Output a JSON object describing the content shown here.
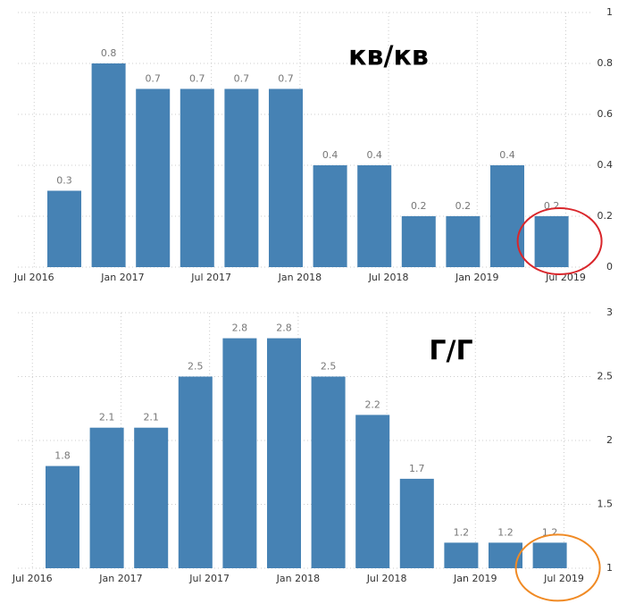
{
  "chart_data": [
    {
      "type": "bar",
      "annotation": "кв/кв",
      "color": "#4682b4",
      "x_labels": [
        "Jul 2016",
        "Jan 2017",
        "Jul 2017",
        "Jan 2018",
        "Jul 2018",
        "Jan 2019",
        "Jul 2019"
      ],
      "values": [
        0.3,
        0.8,
        0.7,
        0.7,
        0.7,
        0.7,
        0.4,
        0.4,
        0.2,
        0.2,
        0.4,
        0.2
      ],
      "ylim": [
        0,
        1
      ],
      "yticks": [
        0,
        0.2,
        0.4,
        0.6,
        0.8,
        1
      ],
      "grid": true,
      "highlight_color": "#d9262b"
    },
    {
      "type": "bar",
      "annotation": "Г/Г",
      "color": "#4682b4",
      "x_labels": [
        "Jul 2016",
        "Jan 2017",
        "Jul 2017",
        "Jan 2018",
        "Jul 2018",
        "Jan 2019",
        "Jul 2019"
      ],
      "values": [
        1.8,
        2.1,
        2.1,
        2.5,
        2.8,
        2.8,
        2.5,
        2.2,
        1.7,
        1.2,
        1.2,
        1.2
      ],
      "ylim": [
        1,
        3
      ],
      "yticks": [
        1,
        1.5,
        2,
        2.5,
        3
      ],
      "grid": true,
      "highlight_color": "#f08a24"
    }
  ]
}
